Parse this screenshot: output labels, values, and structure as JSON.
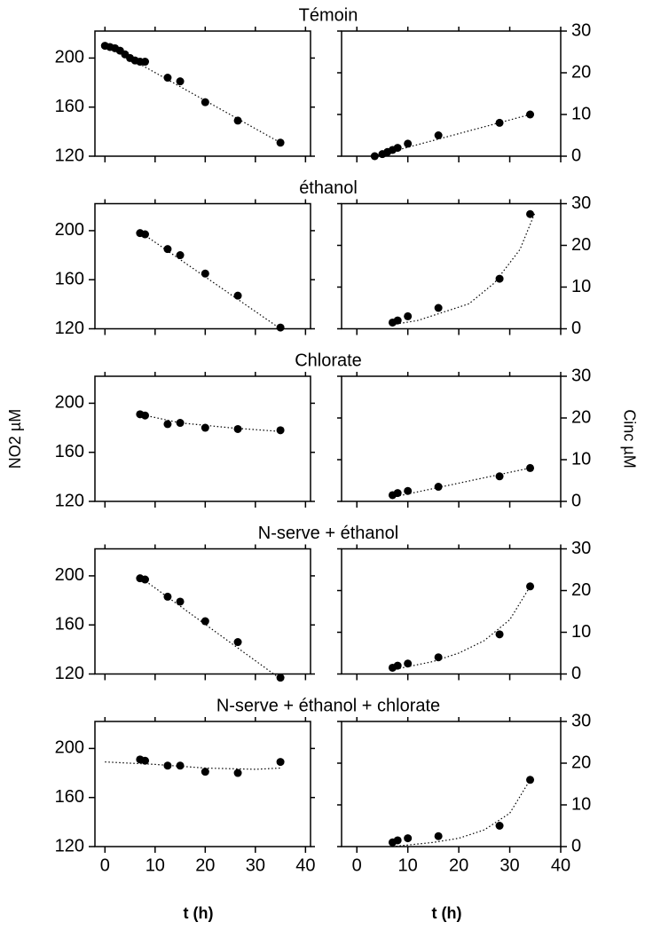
{
  "chart_data": [
    {
      "type": "scatter",
      "title": "Témoin",
      "x": [
        0,
        1,
        2,
        3,
        4,
        5,
        6,
        7,
        8,
        12.5,
        15,
        20,
        26.5,
        35
      ],
      "values": [
        210,
        209,
        208,
        206,
        203,
        200,
        198,
        197,
        197,
        184,
        181,
        164,
        149,
        131
      ],
      "fit_x": [
        0,
        35
      ],
      "fit_values": [
        211,
        131
      ],
      "xlim": [
        -2,
        41
      ],
      "ylim": [
        120,
        222
      ],
      "xticks": [
        0,
        10,
        20,
        30,
        40
      ],
      "yticks": [
        120,
        160,
        200
      ],
      "xtick_labels": false
    },
    {
      "type": "scatter",
      "x": [
        3.5,
        5,
        6,
        7,
        8,
        10,
        16,
        28,
        34
      ],
      "values": [
        0,
        0.5,
        1,
        1.5,
        2,
        3,
        5,
        8,
        10
      ],
      "fit_x": [
        3.5,
        34
      ],
      "fit_values": [
        0,
        10
      ],
      "xlim": [
        -3,
        40
      ],
      "ylim": [
        0,
        30
      ],
      "xticks": [
        0,
        10,
        20,
        30,
        40
      ],
      "yticks": [
        0,
        10,
        20,
        30
      ],
      "xtick_labels": false
    },
    {
      "type": "scatter",
      "title": "éthanol",
      "x": [
        7,
        8,
        12.5,
        15,
        20,
        26.5,
        35
      ],
      "values": [
        198,
        197,
        185,
        180,
        165,
        147,
        121
      ],
      "fit_x": [
        7,
        35
      ],
      "fit_values": [
        199,
        120
      ],
      "xlim": [
        -2,
        41
      ],
      "ylim": [
        120,
        222
      ],
      "xticks": [
        0,
        10,
        20,
        30,
        40
      ],
      "yticks": [
        120,
        160,
        200
      ],
      "xtick_labels": false
    },
    {
      "type": "scatter",
      "x": [
        7,
        8,
        10,
        16,
        28,
        34
      ],
      "values": [
        1.5,
        2,
        3,
        5,
        12,
        27.5
      ],
      "fit_x": [
        7,
        12,
        17,
        22,
        27,
        32,
        35
      ],
      "fit_values": [
        1,
        2,
        4,
        6,
        11,
        19,
        28
      ],
      "xlim": [
        -3,
        40
      ],
      "ylim": [
        0,
        30
      ],
      "xticks": [
        0,
        10,
        20,
        30,
        40
      ],
      "yticks": [
        0,
        10,
        20,
        30
      ],
      "xtick_labels": false
    },
    {
      "type": "scatter",
      "title": "Chlorate",
      "ylabel": "NO2 µM",
      "x": [
        7,
        8,
        12.5,
        15,
        20,
        26.5,
        35
      ],
      "values": [
        191,
        190,
        183,
        184,
        180,
        179,
        178
      ],
      "fit_x": [
        7,
        15,
        25,
        35
      ],
      "fit_values": [
        191,
        184,
        180,
        177
      ],
      "xlim": [
        -2,
        41
      ],
      "ylim": [
        120,
        222
      ],
      "xticks": [
        0,
        10,
        20,
        30,
        40
      ],
      "yticks": [
        120,
        160,
        200
      ],
      "xtick_labels": false
    },
    {
      "type": "scatter",
      "ylabel": "Cinc µM",
      "x": [
        7,
        8,
        10,
        16,
        28,
        34
      ],
      "values": [
        1.5,
        2,
        2.5,
        3.5,
        6,
        8
      ],
      "fit_x": [
        7,
        34
      ],
      "fit_values": [
        1,
        8
      ],
      "xlim": [
        -3,
        40
      ],
      "ylim": [
        0,
        30
      ],
      "xticks": [
        0,
        10,
        20,
        30,
        40
      ],
      "yticks": [
        0,
        10,
        20,
        30
      ],
      "xtick_labels": false
    },
    {
      "type": "scatter",
      "title": "N-serve + éthanol",
      "x": [
        7,
        8,
        12.5,
        15,
        20,
        26.5,
        35
      ],
      "values": [
        198,
        197,
        183,
        179,
        163,
        146,
        117
      ],
      "fit_x": [
        7,
        35
      ],
      "fit_values": [
        199,
        116
      ],
      "xlim": [
        -2,
        41
      ],
      "ylim": [
        120,
        222
      ],
      "xticks": [
        0,
        10,
        20,
        30,
        40
      ],
      "yticks": [
        120,
        160,
        200
      ],
      "xtick_labels": false
    },
    {
      "type": "scatter",
      "x": [
        7,
        8,
        10,
        16,
        28,
        34
      ],
      "values": [
        1.5,
        2,
        2.5,
        4,
        9.5,
        21
      ],
      "fit_x": [
        7,
        15,
        20,
        25,
        30,
        34
      ],
      "fit_values": [
        1,
        3,
        5,
        8,
        13,
        21
      ],
      "xlim": [
        -3,
        40
      ],
      "ylim": [
        0,
        30
      ],
      "xticks": [
        0,
        10,
        20,
        30,
        40
      ],
      "yticks": [
        0,
        10,
        20,
        30
      ],
      "xtick_labels": false
    },
    {
      "type": "scatter",
      "title": "N-serve + éthanol + chlorate",
      "xlabel": "t (h)",
      "x": [
        7,
        8,
        12.5,
        15,
        20,
        26.5,
        35
      ],
      "values": [
        191,
        190,
        186,
        186,
        181,
        180,
        189
      ],
      "fit_x": [
        0,
        10,
        20,
        30,
        35
      ],
      "fit_values": [
        189,
        187,
        184,
        183,
        184
      ],
      "xlim": [
        -2,
        41
      ],
      "ylim": [
        120,
        222
      ],
      "xticks": [
        0,
        10,
        20,
        30,
        40
      ],
      "yticks": [
        120,
        160,
        200
      ],
      "xtick_labels": true
    },
    {
      "type": "scatter",
      "xlabel": "t (h)",
      "x": [
        7,
        8,
        10,
        16,
        28,
        34
      ],
      "values": [
        1,
        1.5,
        2,
        2.5,
        5,
        16
      ],
      "fit_x": [
        7,
        15,
        20,
        25,
        30,
        34
      ],
      "fit_values": [
        0,
        1,
        2,
        4,
        8,
        16
      ],
      "xlim": [
        -3,
        40
      ],
      "ylim": [
        0,
        30
      ],
      "xticks": [
        0,
        10,
        20,
        30,
        40
      ],
      "yticks": [
        0,
        10,
        20,
        30
      ],
      "xtick_labels": true
    }
  ]
}
